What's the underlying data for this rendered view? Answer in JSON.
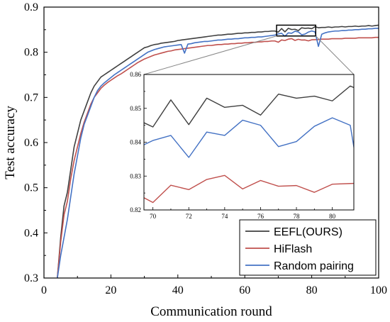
{
  "chart_data": {
    "type": "line",
    "xlabel": "Communication round",
    "ylabel": "Test accuracy",
    "xlim": [
      0,
      100
    ],
    "ylim": [
      0.3,
      0.9
    ],
    "xticks": [
      0,
      20,
      40,
      60,
      80,
      100
    ],
    "yticks": [
      0.3,
      0.4,
      0.5,
      0.6,
      0.7,
      0.8,
      0.9
    ],
    "grid": false,
    "legend_position": "bottom-right",
    "series": [
      {
        "name": "EEFL(OURS)",
        "color": "#404040",
        "points": [
          [
            4,
            0.3
          ],
          [
            5,
            0.39
          ],
          [
            6,
            0.46
          ],
          [
            7,
            0.49
          ],
          [
            8,
            0.54
          ],
          [
            9,
            0.59
          ],
          [
            10,
            0.62
          ],
          [
            11,
            0.65
          ],
          [
            12,
            0.67
          ],
          [
            13,
            0.69
          ],
          [
            14,
            0.71
          ],
          [
            15,
            0.725
          ],
          [
            16,
            0.735
          ],
          [
            17,
            0.745
          ],
          [
            18,
            0.75
          ],
          [
            19,
            0.755
          ],
          [
            20,
            0.76
          ],
          [
            21,
            0.765
          ],
          [
            22,
            0.77
          ],
          [
            23,
            0.775
          ],
          [
            24,
            0.78
          ],
          [
            25,
            0.785
          ],
          [
            26,
            0.79
          ],
          [
            27,
            0.795
          ],
          [
            28,
            0.8
          ],
          [
            29,
            0.805
          ],
          [
            30,
            0.81
          ],
          [
            31,
            0.812
          ],
          [
            32,
            0.815
          ],
          [
            33,
            0.817
          ],
          [
            34,
            0.818
          ],
          [
            35,
            0.82
          ],
          [
            36,
            0.821
          ],
          [
            37,
            0.822
          ],
          [
            38,
            0.823
          ],
          [
            39,
            0.824
          ],
          [
            40,
            0.826
          ],
          [
            41,
            0.827
          ],
          [
            42,
            0.828
          ],
          [
            43,
            0.829
          ],
          [
            44,
            0.83
          ],
          [
            45,
            0.831
          ],
          [
            46,
            0.832
          ],
          [
            47,
            0.833
          ],
          [
            48,
            0.834
          ],
          [
            49,
            0.835
          ],
          [
            50,
            0.836
          ],
          [
            51,
            0.837
          ],
          [
            52,
            0.838
          ],
          [
            53,
            0.838
          ],
          [
            54,
            0.839
          ],
          [
            55,
            0.84
          ],
          [
            56,
            0.84
          ],
          [
            57,
            0.841
          ],
          [
            58,
            0.842
          ],
          [
            59,
            0.842
          ],
          [
            60,
            0.843
          ],
          [
            61,
            0.843
          ],
          [
            62,
            0.844
          ],
          [
            63,
            0.844
          ],
          [
            64,
            0.845
          ],
          [
            65,
            0.845
          ],
          [
            66,
            0.846
          ],
          [
            67,
            0.846
          ],
          [
            68,
            0.847
          ],
          [
            69,
            0.847
          ],
          [
            70,
            0.8445
          ],
          [
            71,
            0.8525
          ],
          [
            72,
            0.8452
          ],
          [
            73,
            0.853
          ],
          [
            74,
            0.8503
          ],
          [
            75,
            0.8509
          ],
          [
            76,
            0.848
          ],
          [
            77,
            0.8542
          ],
          [
            78,
            0.853
          ],
          [
            79,
            0.8536
          ],
          [
            80,
            0.8522
          ],
          [
            81,
            0.8566
          ],
          [
            82,
            0.8542
          ],
          [
            83,
            0.855
          ],
          [
            84,
            0.855
          ],
          [
            85,
            0.856
          ],
          [
            86,
            0.855
          ],
          [
            87,
            0.856
          ],
          [
            88,
            0.856
          ],
          [
            89,
            0.857
          ],
          [
            90,
            0.856
          ],
          [
            91,
            0.857
          ],
          [
            92,
            0.857
          ],
          [
            93,
            0.858
          ],
          [
            94,
            0.857
          ],
          [
            95,
            0.858
          ],
          [
            96,
            0.858
          ],
          [
            97,
            0.859
          ],
          [
            98,
            0.858
          ],
          [
            99,
            0.859
          ],
          [
            100,
            0.86
          ]
        ]
      },
      {
        "name": "HiFlash",
        "color": "#c0504d",
        "points": [
          [
            4,
            0.3
          ],
          [
            5,
            0.38
          ],
          [
            6,
            0.44
          ],
          [
            7,
            0.47
          ],
          [
            8,
            0.52
          ],
          [
            9,
            0.56
          ],
          [
            10,
            0.59
          ],
          [
            11,
            0.62
          ],
          [
            12,
            0.645
          ],
          [
            13,
            0.665
          ],
          [
            14,
            0.685
          ],
          [
            15,
            0.7
          ],
          [
            16,
            0.71
          ],
          [
            17,
            0.72
          ],
          [
            18,
            0.727
          ],
          [
            19,
            0.733
          ],
          [
            20,
            0.738
          ],
          [
            21,
            0.743
          ],
          [
            22,
            0.748
          ],
          [
            23,
            0.752
          ],
          [
            24,
            0.757
          ],
          [
            25,
            0.762
          ],
          [
            26,
            0.767
          ],
          [
            27,
            0.772
          ],
          [
            28,
            0.777
          ],
          [
            29,
            0.781
          ],
          [
            30,
            0.785
          ],
          [
            31,
            0.788
          ],
          [
            32,
            0.791
          ],
          [
            33,
            0.794
          ],
          [
            34,
            0.796
          ],
          [
            35,
            0.798
          ],
          [
            36,
            0.8
          ],
          [
            37,
            0.802
          ],
          [
            38,
            0.803
          ],
          [
            39,
            0.805
          ],
          [
            40,
            0.806
          ],
          [
            41,
            0.807
          ],
          [
            42,
            0.808
          ],
          [
            43,
            0.809
          ],
          [
            44,
            0.81
          ],
          [
            45,
            0.811
          ],
          [
            46,
            0.812
          ],
          [
            47,
            0.813
          ],
          [
            48,
            0.814
          ],
          [
            49,
            0.815
          ],
          [
            50,
            0.815
          ],
          [
            51,
            0.816
          ],
          [
            52,
            0.817
          ],
          [
            53,
            0.817
          ],
          [
            54,
            0.818
          ],
          [
            55,
            0.818
          ],
          [
            56,
            0.819
          ],
          [
            57,
            0.819
          ],
          [
            58,
            0.82
          ],
          [
            59,
            0.82
          ],
          [
            60,
            0.821
          ],
          [
            61,
            0.821
          ],
          [
            62,
            0.822
          ],
          [
            63,
            0.822
          ],
          [
            64,
            0.823
          ],
          [
            65,
            0.823
          ],
          [
            66,
            0.824
          ],
          [
            67,
            0.824
          ],
          [
            68,
            0.825
          ],
          [
            69,
            0.825
          ],
          [
            70,
            0.8222
          ],
          [
            71,
            0.8273
          ],
          [
            72,
            0.826
          ],
          [
            73,
            0.829
          ],
          [
            74,
            0.8302
          ],
          [
            75,
            0.8262
          ],
          [
            76,
            0.8287
          ],
          [
            77,
            0.827
          ],
          [
            78,
            0.8272
          ],
          [
            79,
            0.8252
          ],
          [
            80,
            0.8276
          ],
          [
            81,
            0.8278
          ],
          [
            82,
            0.828
          ],
          [
            83,
            0.829
          ],
          [
            84,
            0.829
          ],
          [
            85,
            0.829
          ],
          [
            86,
            0.83
          ],
          [
            87,
            0.83
          ],
          [
            88,
            0.83
          ],
          [
            89,
            0.83
          ],
          [
            90,
            0.831
          ],
          [
            91,
            0.831
          ],
          [
            92,
            0.831
          ],
          [
            93,
            0.831
          ],
          [
            94,
            0.832
          ],
          [
            95,
            0.832
          ],
          [
            96,
            0.832
          ],
          [
            97,
            0.832
          ],
          [
            98,
            0.832
          ],
          [
            99,
            0.833
          ],
          [
            100,
            0.833
          ]
        ]
      },
      {
        "name": "Random pairing",
        "color": "#4472c4",
        "points": [
          [
            4,
            0.3
          ],
          [
            5,
            0.35
          ],
          [
            6,
            0.39
          ],
          [
            7,
            0.43
          ],
          [
            8,
            0.48
          ],
          [
            9,
            0.53
          ],
          [
            10,
            0.57
          ],
          [
            11,
            0.61
          ],
          [
            12,
            0.64
          ],
          [
            13,
            0.66
          ],
          [
            14,
            0.68
          ],
          [
            15,
            0.7
          ],
          [
            16,
            0.715
          ],
          [
            17,
            0.725
          ],
          [
            18,
            0.732
          ],
          [
            19,
            0.738
          ],
          [
            20,
            0.744
          ],
          [
            21,
            0.75
          ],
          [
            22,
            0.755
          ],
          [
            23,
            0.76
          ],
          [
            24,
            0.765
          ],
          [
            25,
            0.77
          ],
          [
            26,
            0.775
          ],
          [
            27,
            0.78
          ],
          [
            28,
            0.785
          ],
          [
            29,
            0.79
          ],
          [
            30,
            0.795
          ],
          [
            31,
            0.8
          ],
          [
            32,
            0.803
          ],
          [
            33,
            0.806
          ],
          [
            34,
            0.808
          ],
          [
            35,
            0.81
          ],
          [
            36,
            0.812
          ],
          [
            37,
            0.813
          ],
          [
            38,
            0.814
          ],
          [
            39,
            0.815
          ],
          [
            40,
            0.816
          ],
          [
            41,
            0.817
          ],
          [
            42,
            0.798
          ],
          [
            43,
            0.818
          ],
          [
            44,
            0.819
          ],
          [
            45,
            0.821
          ],
          [
            46,
            0.822
          ],
          [
            47,
            0.823
          ],
          [
            48,
            0.824
          ],
          [
            49,
            0.824
          ],
          [
            50,
            0.825
          ],
          [
            51,
            0.826
          ],
          [
            52,
            0.827
          ],
          [
            53,
            0.827
          ],
          [
            54,
            0.828
          ],
          [
            55,
            0.829
          ],
          [
            56,
            0.829
          ],
          [
            57,
            0.83
          ],
          [
            58,
            0.83
          ],
          [
            59,
            0.831
          ],
          [
            60,
            0.832
          ],
          [
            61,
            0.832
          ],
          [
            62,
            0.833
          ],
          [
            63,
            0.833
          ],
          [
            64,
            0.834
          ],
          [
            65,
            0.834
          ],
          [
            66,
            0.835
          ],
          [
            67,
            0.836
          ],
          [
            68,
            0.837
          ],
          [
            69,
            0.838
          ],
          [
            70,
            0.8405
          ],
          [
            71,
            0.842
          ],
          [
            72,
            0.8355
          ],
          [
            73,
            0.843
          ],
          [
            74,
            0.842
          ],
          [
            75,
            0.8465
          ],
          [
            76,
            0.845
          ],
          [
            77,
            0.8387
          ],
          [
            78,
            0.8402
          ],
          [
            79,
            0.8447
          ],
          [
            80,
            0.8472
          ],
          [
            81,
            0.845
          ],
          [
            82,
            0.813
          ],
          [
            83,
            0.84
          ],
          [
            84,
            0.843
          ],
          [
            85,
            0.845
          ],
          [
            86,
            0.846
          ],
          [
            87,
            0.847
          ],
          [
            88,
            0.847
          ],
          [
            89,
            0.848
          ],
          [
            90,
            0.848
          ],
          [
            91,
            0.849
          ],
          [
            92,
            0.849
          ],
          [
            93,
            0.85
          ],
          [
            94,
            0.85
          ],
          [
            95,
            0.851
          ],
          [
            96,
            0.851
          ],
          [
            97,
            0.852
          ],
          [
            98,
            0.852
          ],
          [
            99,
            0.853
          ],
          [
            100,
            0.853
          ]
        ]
      }
    ],
    "inset": {
      "xlim": [
        69.5,
        81.2
      ],
      "ylim": [
        0.82,
        0.86
      ],
      "xticks": [
        70,
        72,
        74,
        76,
        78,
        80
      ],
      "yticks": [
        0.82,
        0.83,
        0.84,
        0.85,
        0.86
      ],
      "zoom_box": {
        "x": [
          69.5,
          81.2
        ],
        "y": [
          0.836,
          0.86
        ]
      }
    }
  }
}
